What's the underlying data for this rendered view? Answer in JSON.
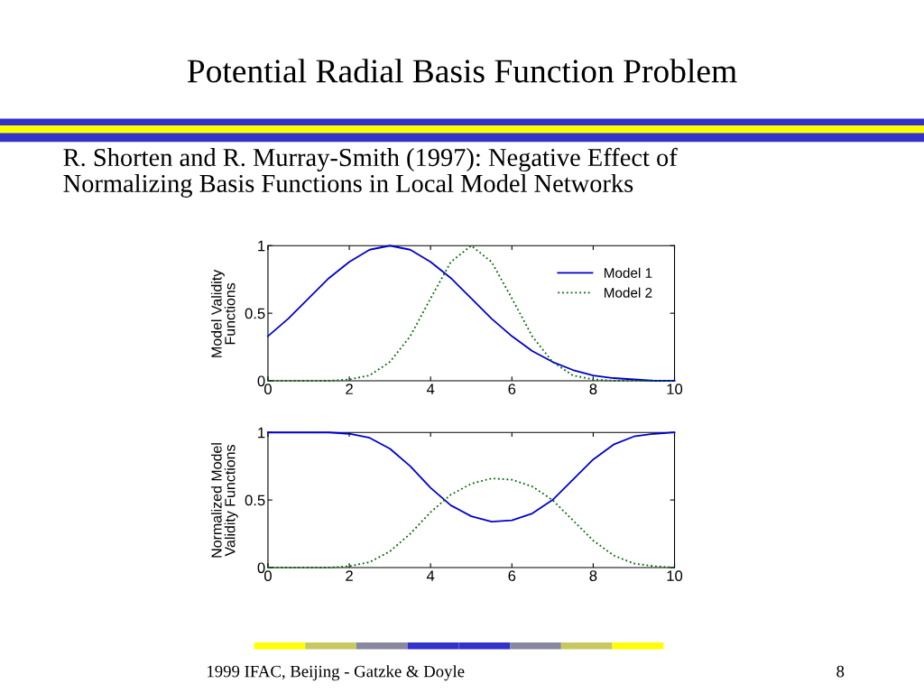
{
  "chart_data": [
    {
      "type": "line",
      "title": "Potential Radial Basis Function Problem",
      "subtitle": "R. Shorten and R. Murray-Smith (1997): Negative Effect of\nNormalizing Basis Functions in Local Model Networks",
      "ylabel": "Model Validity\nFunctions",
      "x": [
        0,
        0.5,
        1,
        1.5,
        2,
        2.5,
        3,
        3.5,
        4,
        4.5,
        5,
        5.5,
        6,
        6.5,
        7,
        7.5,
        8,
        8.5,
        9,
        9.5,
        10
      ],
      "series": [
        {
          "name": "Model 1",
          "color": "#0000cc",
          "line_style": "solid",
          "values": [
            0.33,
            0.46,
            0.61,
            0.76,
            0.88,
            0.97,
            1.0,
            0.97,
            0.88,
            0.76,
            0.61,
            0.46,
            0.33,
            0.22,
            0.14,
            0.08,
            0.04,
            0.02,
            0.01,
            0.0,
            0.0
          ]
        },
        {
          "name": "Model 2",
          "color": "#006600",
          "line_style": "dotted",
          "values": [
            0.0,
            0.0,
            0.0,
            0.0,
            0.01,
            0.04,
            0.14,
            0.33,
            0.61,
            0.88,
            1.0,
            0.88,
            0.61,
            0.33,
            0.14,
            0.04,
            0.01,
            0.0,
            0.0,
            0.0,
            0.0
          ]
        }
      ],
      "xlim": [
        0,
        10
      ],
      "xticks": [
        0,
        2,
        4,
        6,
        8,
        10
      ],
      "ylim": [
        0,
        1
      ],
      "yticks": [
        0,
        0.5,
        1
      ],
      "legend": "top right",
      "grid": false
    },
    {
      "type": "line",
      "ylabel": "Normalized Model\nValidity Functions",
      "x": [
        0,
        0.5,
        1,
        1.5,
        2,
        2.5,
        3,
        3.5,
        4,
        4.5,
        5,
        5.5,
        6,
        6.5,
        7,
        7.5,
        8,
        8.5,
        9,
        9.5,
        10
      ],
      "series": [
        {
          "color": "#0000cc",
          "line_style": "solid",
          "values": [
            1.0,
            1.0,
            1.0,
            1.0,
            0.99,
            0.96,
            0.88,
            0.75,
            0.59,
            0.46,
            0.38,
            0.34,
            0.35,
            0.4,
            0.5,
            0.65,
            0.8,
            0.91,
            0.97,
            0.99,
            1.0
          ]
        },
        {
          "color": "#006600",
          "line_style": "dotted",
          "values": [
            0.0,
            0.0,
            0.0,
            0.0,
            0.01,
            0.04,
            0.12,
            0.25,
            0.41,
            0.54,
            0.62,
            0.66,
            0.65,
            0.6,
            0.5,
            0.35,
            0.2,
            0.09,
            0.03,
            0.01,
            0.0
          ]
        }
      ],
      "xlim": [
        0,
        10
      ],
      "xticks": [
        0,
        2,
        4,
        6,
        8,
        10
      ],
      "ylim": [
        0,
        1
      ],
      "yticks": [
        0,
        0.5,
        1
      ],
      "grid": false,
      "annotations": [
        "1999 IFAC, Beijing - Gatzke & Doyle",
        "8"
      ]
    }
  ]
}
